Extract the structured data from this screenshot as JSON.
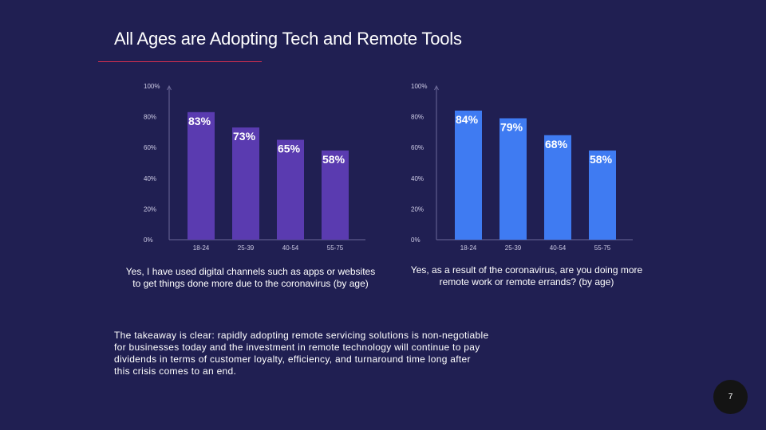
{
  "slide": {
    "title": "All Ages are Adopting Tech and Remote Tools",
    "takeaway": "The takeaway is clear: rapidly adopting remote servicing solutions is non-negotiable for businesses today and the investment in remote technology will continue to pay dividends in terms of customer loyalty, efficiency, and turnaround time long after this crisis comes to an end.",
    "page_number": "7",
    "accent_color": "#d9304f"
  },
  "chart_data": [
    {
      "type": "bar",
      "caption": "Yes, I have used digital channels such as apps or websites to get things done more due to the coronavirus (by age)",
      "categories": [
        "18-24",
        "25-39",
        "40-54",
        "55-75"
      ],
      "values": [
        83,
        73,
        65,
        58
      ],
      "data_labels": [
        "83%",
        "73%",
        "65%",
        "58%"
      ],
      "yticks": [
        "0%",
        "20%",
        "40%",
        "60%",
        "80%",
        "100%"
      ],
      "ylim": [
        0,
        100
      ],
      "bar_color": "#5a3bb0",
      "grid": false
    },
    {
      "type": "bar",
      "caption": "Yes, as a result of the coronavirus, are you doing more remote work or remote errands? (by age)",
      "categories": [
        "18-24",
        "25-39",
        "40-54",
        "55-75"
      ],
      "values": [
        84,
        79,
        68,
        58
      ],
      "data_labels": [
        "84%",
        "79%",
        "68%",
        "58%"
      ],
      "yticks": [
        "0%",
        "20%",
        "40%",
        "60%",
        "80%",
        "100%"
      ],
      "ylim": [
        0,
        100
      ],
      "bar_color": "#3f7bf2",
      "grid": false
    }
  ]
}
